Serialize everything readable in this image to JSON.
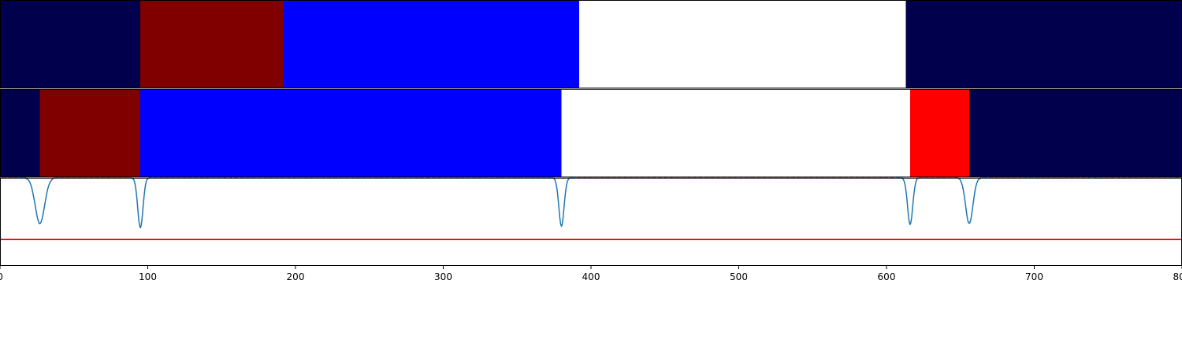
{
  "chart_data": [
    {
      "type": "segment-strip",
      "segments": [
        {
          "start": 0,
          "end": 95,
          "color": "#00004c"
        },
        {
          "start": 95,
          "end": 192,
          "color": "#800000"
        },
        {
          "start": 192,
          "end": 392,
          "color": "#0000ff"
        },
        {
          "start": 392,
          "end": 613,
          "color": "#ffffff"
        },
        {
          "start": 613,
          "end": 800,
          "color": "#00004c"
        }
      ]
    },
    {
      "type": "segment-strip",
      "segments": [
        {
          "start": 0,
          "end": 27,
          "color": "#00004c"
        },
        {
          "start": 27,
          "end": 95,
          "color": "#800000"
        },
        {
          "start": 95,
          "end": 380,
          "color": "#0000ff"
        },
        {
          "start": 380,
          "end": 616,
          "color": "#ffffff"
        },
        {
          "start": 616,
          "end": 656,
          "color": "#ff0000"
        },
        {
          "start": 656,
          "end": 800,
          "color": "#00004c"
        }
      ]
    },
    {
      "type": "line",
      "baseline": 1.0,
      "ylim": [
        -1.0,
        1.0
      ],
      "threshold": {
        "value": -0.4,
        "color": "#ff0000"
      },
      "series": [
        {
          "color": "#1f77b4",
          "dips": [
            {
              "center": 27,
              "depth": 0.52,
              "width": 4.5
            },
            {
              "center": 95,
              "depth": 0.57,
              "width": 2.5
            },
            {
              "center": 380,
              "depth": 0.55,
              "width": 2.5
            },
            {
              "center": 616,
              "depth": 0.53,
              "width": 2.5
            },
            {
              "center": 656,
              "depth": 0.52,
              "width": 3.5
            }
          ]
        }
      ]
    }
  ],
  "xaxis": {
    "xlim": [
      0,
      800
    ],
    "ticks": [
      0,
      100,
      200,
      300,
      400,
      500,
      600,
      700,
      800
    ],
    "tick_labels": [
      "0",
      "100",
      "200",
      "300",
      "400",
      "500",
      "600",
      "700",
      "800"
    ]
  }
}
